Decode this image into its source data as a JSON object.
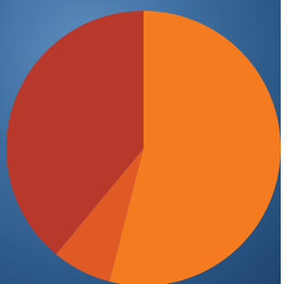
{
  "chart_data": {
    "type": "pie",
    "values": [
      54,
      7,
      39
    ],
    "colors": [
      "#f47b1f",
      "#e05a25",
      "#b8392b"
    ]
  }
}
